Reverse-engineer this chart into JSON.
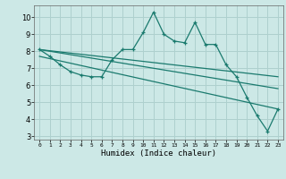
{
  "xlabel": "Humidex (Indice chaleur)",
  "bg_color": "#cce8e6",
  "grid_color": "#aed0ce",
  "line_color": "#1a7a6e",
  "x_ticks": [
    0,
    1,
    2,
    3,
    4,
    5,
    6,
    7,
    8,
    9,
    10,
    11,
    12,
    13,
    14,
    15,
    16,
    17,
    18,
    19,
    20,
    21,
    22,
    23
  ],
  "ylim": [
    2.8,
    10.7
  ],
  "xlim": [
    -0.5,
    23.5
  ],
  "series2_x": [
    0,
    1,
    2,
    3,
    4,
    5,
    6,
    7,
    8,
    9,
    10,
    11,
    12,
    13,
    14,
    15,
    16,
    17,
    18,
    19,
    20,
    21,
    22,
    23
  ],
  "series2_y": [
    8.1,
    7.7,
    7.2,
    6.8,
    6.6,
    6.5,
    6.5,
    7.5,
    8.1,
    8.1,
    9.1,
    10.3,
    9.0,
    8.6,
    8.5,
    9.7,
    8.4,
    8.4,
    7.2,
    6.5,
    5.3,
    4.2,
    3.3,
    4.6
  ],
  "trend1_x": [
    0,
    23
  ],
  "trend1_y": [
    8.1,
    6.5
  ],
  "trend2_x": [
    0,
    23
  ],
  "trend2_y": [
    8.1,
    5.8
  ],
  "trend3_x": [
    0,
    23
  ],
  "trend3_y": [
    7.7,
    4.6
  ],
  "yticks": [
    3,
    4,
    5,
    6,
    7,
    8,
    9,
    10
  ]
}
